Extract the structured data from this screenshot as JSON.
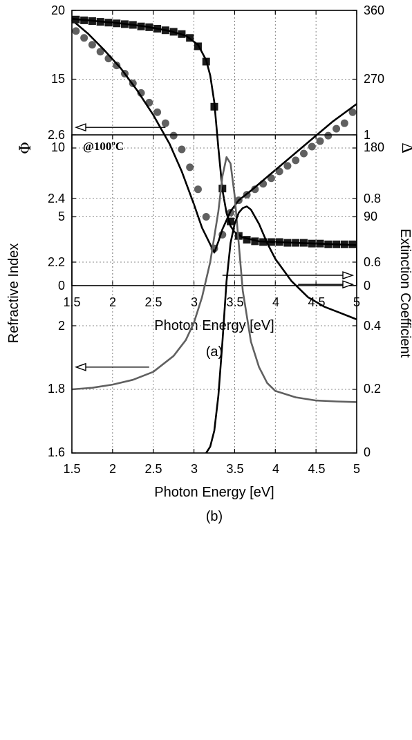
{
  "chart_data": [
    {
      "panel": "(a)",
      "type": "line",
      "xlabel": "Photon Energy [eV]",
      "ylabel": "Φ",
      "y2label": "Δ",
      "xlim": [
        1.5,
        5
      ],
      "ylim": [
        0,
        20
      ],
      "y2lim": [
        0,
        360
      ],
      "xticks": [
        "1.5",
        "2",
        "2.5",
        "3",
        "3.5",
        "4",
        "4.5",
        "5"
      ],
      "yticks": [
        "0",
        "5",
        "10",
        "15",
        "20"
      ],
      "y2ticks": [
        "0",
        "90",
        "180",
        "270",
        "360"
      ],
      "grid": true,
      "series": [
        {
          "axis": "left",
          "style": "circle-markers",
          "color": "#606060",
          "x": [
            1.55,
            1.65,
            1.75,
            1.85,
            1.95,
            2.05,
            2.15,
            2.25,
            2.35,
            2.45,
            2.55,
            2.65,
            2.75,
            2.85,
            2.95,
            3.05,
            3.15,
            3.25,
            3.35,
            3.45,
            3.55,
            3.65,
            3.75,
            3.85,
            3.95,
            4.05,
            4.15,
            4.25,
            4.35,
            4.45,
            4.55,
            4.65,
            4.75,
            4.85,
            4.95
          ],
          "y": [
            18.5,
            18.0,
            17.5,
            17.0,
            16.5,
            16.0,
            15.4,
            14.7,
            14.0,
            13.3,
            12.6,
            11.8,
            10.9,
            9.9,
            8.6,
            7.0,
            5.0,
            2.7,
            3.7,
            5.3,
            6.2,
            6.6,
            7.0,
            7.4,
            7.8,
            8.3,
            8.7,
            9.1,
            9.6,
            10.1,
            10.5,
            10.9,
            11.4,
            11.8,
            12.6
          ]
        },
        {
          "axis": "left",
          "style": "line",
          "color": "#000000",
          "x": [
            1.5,
            1.7,
            1.9,
            2.1,
            2.3,
            2.5,
            2.7,
            2.85,
            3.0,
            3.1,
            3.2,
            3.25,
            3.3,
            3.35,
            3.45,
            3.55,
            3.7,
            3.9,
            4.1,
            4.3,
            4.5,
            4.7,
            5.0
          ],
          "y": [
            19.3,
            18.3,
            17.1,
            15.8,
            14.2,
            12.4,
            10.3,
            8.3,
            5.9,
            4.2,
            3.0,
            2.4,
            3.2,
            4.1,
            5.4,
            6.2,
            6.9,
            7.9,
            8.9,
            9.9,
            10.9,
            11.9,
            13.2
          ]
        },
        {
          "axis": "right",
          "style": "square-markers",
          "color": "#1a1a1a",
          "x": [
            1.55,
            1.65,
            1.75,
            1.85,
            1.95,
            2.05,
            2.15,
            2.25,
            2.35,
            2.45,
            2.55,
            2.65,
            2.75,
            2.85,
            2.95,
            3.05,
            3.15,
            3.25,
            3.35,
            3.45,
            3.55,
            3.65,
            3.75,
            3.85,
            3.95,
            4.05,
            4.15,
            4.25,
            4.35,
            4.45,
            4.55,
            4.65,
            4.75,
            4.85,
            4.95
          ],
          "y": [
            348,
            347,
            346,
            345,
            344,
            343,
            342,
            341,
            339,
            338,
            336,
            334,
            332,
            329,
            324,
            313,
            293,
            234,
            127,
            84,
            65,
            60,
            58,
            57,
            57,
            57,
            56,
            56,
            56,
            55,
            55,
            54,
            54,
            54,
            54
          ]
        },
        {
          "axis": "right",
          "style": "line",
          "color": "#000000",
          "x": [
            1.5,
            1.8,
            2.1,
            2.4,
            2.7,
            2.9,
            3.05,
            3.15,
            3.2,
            3.25,
            3.3,
            3.35,
            3.4,
            3.45,
            3.5,
            3.6,
            3.8,
            4.0,
            4.5,
            5.0
          ],
          "y": [
            349,
            346,
            343,
            339,
            333,
            327,
            315,
            295,
            275,
            240,
            180,
            125,
            95,
            78,
            70,
            63,
            58,
            57,
            55,
            53
          ]
        }
      ],
      "annotations": [
        {
          "type": "arrow",
          "direction": "left",
          "points_to": "left-axis",
          "from_x": 2.65,
          "y": 11.5
        },
        {
          "type": "arrow",
          "direction": "right",
          "points_to": "right-axis",
          "from_x": 3.35,
          "y": 13.5
        }
      ],
      "caption": "(a)"
    },
    {
      "panel": "(b)",
      "type": "line",
      "xlabel": "Photon Energy [eV]",
      "ylabel": "Refractive Index",
      "y2label": "Extinction Coefficient",
      "xlim": [
        1.5,
        5
      ],
      "ylim": [
        1.6,
        2.6
      ],
      "y2lim": [
        0,
        1
      ],
      "xticks": [
        "1.5",
        "2",
        "2.5",
        "3",
        "3.5",
        "4",
        "4.5",
        "5"
      ],
      "yticks": [
        "1.6",
        "1.8",
        "2",
        "2.2",
        "2.4",
        "2.6"
      ],
      "y2ticks": [
        "0",
        "0.2",
        "0.4",
        "0.6",
        "0.8",
        "1"
      ],
      "grid": true,
      "annotation_text": {
        "main": "@100",
        "sup": "o",
        "unit": "C"
      },
      "series": [
        {
          "axis": "left",
          "style": "line",
          "color": "#606060",
          "x": [
            1.5,
            1.75,
            2.0,
            2.25,
            2.5,
            2.75,
            2.9,
            3.0,
            3.1,
            3.2,
            3.3,
            3.35,
            3.4,
            3.45,
            3.5,
            3.55,
            3.6,
            3.7,
            3.8,
            3.9,
            4.0,
            4.25,
            4.5,
            4.75,
            5.0
          ],
          "y": [
            1.8,
            1.805,
            1.815,
            1.83,
            1.855,
            1.905,
            1.955,
            2.01,
            2.09,
            2.2,
            2.36,
            2.47,
            2.53,
            2.51,
            2.41,
            2.26,
            2.11,
            1.95,
            1.87,
            1.82,
            1.795,
            1.775,
            1.765,
            1.762,
            1.76
          ]
        },
        {
          "axis": "right",
          "style": "line",
          "color": "#000000",
          "x": [
            3.15,
            3.2,
            3.25,
            3.3,
            3.35,
            3.4,
            3.45,
            3.5,
            3.55,
            3.6,
            3.65,
            3.7,
            3.8,
            3.9,
            4.0,
            4.2,
            4.4,
            4.6,
            4.8,
            5.0
          ],
          "y": [
            0.0,
            0.02,
            0.07,
            0.18,
            0.35,
            0.54,
            0.66,
            0.72,
            0.755,
            0.77,
            0.775,
            0.765,
            0.72,
            0.66,
            0.61,
            0.54,
            0.49,
            0.46,
            0.44,
            0.42
          ]
        }
      ],
      "annotations": [
        {
          "type": "arrow",
          "direction": "left",
          "points_to": "left-axis",
          "from_x": 2.45,
          "y": 1.87
        },
        {
          "type": "arrow",
          "direction": "right",
          "points_to": "right-axis",
          "from_x": 4.28,
          "y": 0.53
        }
      ],
      "caption": "(b)"
    }
  ]
}
